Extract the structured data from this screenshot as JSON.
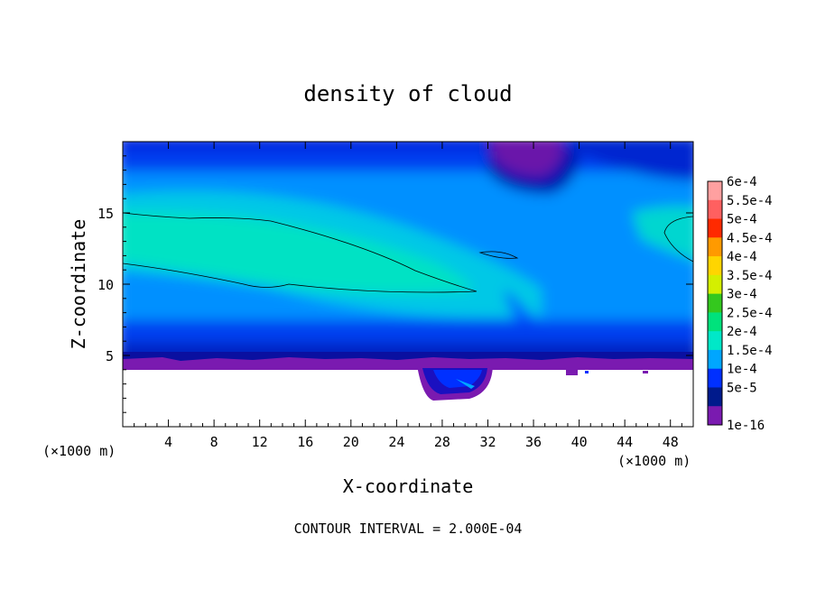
{
  "chart_data": {
    "type": "heatmap",
    "title": "density of cloud",
    "xlabel": "X-coordinate",
    "ylabel": "Z-coordinate",
    "x_unit_left": "(×1000 m)",
    "x_unit_right": "(×1000 m)",
    "xlim": [
      0,
      50
    ],
    "ylim": [
      0,
      20
    ],
    "xticks": [
      {
        "value": 4,
        "label": "4"
      },
      {
        "value": 8,
        "label": "8"
      },
      {
        "value": 12,
        "label": "12"
      },
      {
        "value": 16,
        "label": "16"
      },
      {
        "value": 20,
        "label": "20"
      },
      {
        "value": 24,
        "label": "24"
      },
      {
        "value": 28,
        "label": "28"
      },
      {
        "value": 32,
        "label": "32"
      },
      {
        "value": 36,
        "label": "36"
      },
      {
        "value": 40,
        "label": "40"
      },
      {
        "value": 44,
        "label": "44"
      },
      {
        "value": 48,
        "label": "48"
      }
    ],
    "yticks": [
      {
        "value": 5,
        "label": "5"
      },
      {
        "value": 10,
        "label": "10"
      },
      {
        "value": 15,
        "label": "15"
      }
    ],
    "footer": "CONTOUR INTERVAL = 2.000E-04",
    "contour_level": 0.0002,
    "colorbar": {
      "labels": [
        "6e-4",
        "5.5e-4",
        "5e-4",
        "4.5e-4",
        "4e-4",
        "3.5e-4",
        "3e-4",
        "2.5e-4",
        "2e-4",
        "1.5e-4",
        "1e-4",
        "5e-5",
        "1e-16"
      ],
      "colors": [
        "#ffa0a0",
        "#ff6060",
        "#ff2a00",
        "#ff9a00",
        "#ffd500",
        "#d4ef00",
        "#34c81e",
        "#00e27c",
        "#00e8c8",
        "#00a6ff",
        "#0030ff",
        "#001a8c",
        "#7a1ab0"
      ]
    }
  }
}
